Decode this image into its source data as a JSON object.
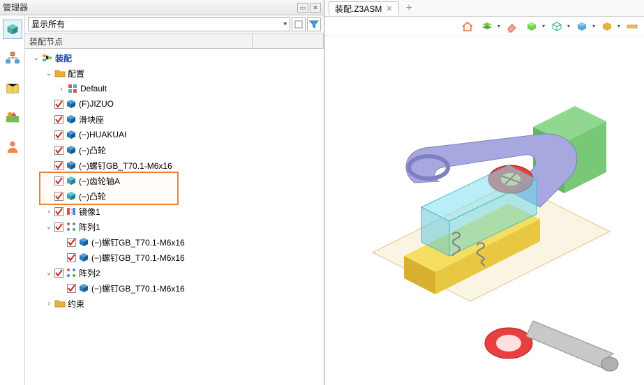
{
  "manager": {
    "title": "管理器",
    "filter_label": "显示所有",
    "col1_header": "装配节点",
    "col2_header": ""
  },
  "left_toolbar": {
    "items": [
      {
        "name": "assembly-cube-icon",
        "active": true
      },
      {
        "name": "org-chart-icon",
        "active": false
      },
      {
        "name": "package-icon",
        "active": false
      },
      {
        "name": "appearance-icon",
        "active": false
      },
      {
        "name": "user-icon",
        "active": false
      }
    ]
  },
  "tree": {
    "nodes": [
      {
        "depth": 0,
        "exp": "open",
        "chk": null,
        "icon": "asm-root",
        "label": "装配",
        "bold": true
      },
      {
        "depth": 1,
        "exp": "open",
        "chk": null,
        "icon": "folder",
        "label": "配置"
      },
      {
        "depth": 2,
        "exp": "closed",
        "chk": null,
        "icon": "config",
        "label": "Default"
      },
      {
        "depth": 1,
        "exp": "blank",
        "chk": true,
        "icon": "cube-blue",
        "label": "(F)JIZUO"
      },
      {
        "depth": 1,
        "exp": "blank",
        "chk": true,
        "icon": "cube-blue",
        "label": "滑块座"
      },
      {
        "depth": 1,
        "exp": "blank",
        "chk": true,
        "icon": "cube-blue",
        "label": "(−)HUAKUAI"
      },
      {
        "depth": 1,
        "exp": "blank",
        "chk": true,
        "icon": "cube-blue",
        "label": "(−)凸轮"
      },
      {
        "depth": 1,
        "exp": "blank",
        "chk": true,
        "icon": "cube-blue",
        "label": "(−)螺钉GB_T70.1-M6x16"
      },
      {
        "depth": 1,
        "exp": "blank",
        "chk": true,
        "icon": "cube-cyan",
        "label": "(−)齿轮轴A"
      },
      {
        "depth": 1,
        "exp": "blank",
        "chk": true,
        "icon": "cube-cyan",
        "label": "(−)凸轮"
      },
      {
        "depth": 1,
        "exp": "closed",
        "chk": true,
        "icon": "mirror",
        "label": "镜像1"
      },
      {
        "depth": 1,
        "exp": "open",
        "chk": true,
        "icon": "pattern",
        "label": "阵列1"
      },
      {
        "depth": 2,
        "exp": "blank",
        "chk": true,
        "icon": "cube-blue",
        "label": "(−)螺钉GB_T70.1-M6x16"
      },
      {
        "depth": 2,
        "exp": "blank",
        "chk": true,
        "icon": "cube-blue",
        "label": "(−)螺钉GB_T70.1-M6x16"
      },
      {
        "depth": 1,
        "exp": "open",
        "chk": true,
        "icon": "pattern",
        "label": "阵列2"
      },
      {
        "depth": 2,
        "exp": "blank",
        "chk": true,
        "icon": "cube-blue",
        "label": "(−)螺钉GB_T70.1-M6x16"
      },
      {
        "depth": 1,
        "exp": "closed",
        "chk": null,
        "icon": "folder",
        "label": "约束"
      }
    ],
    "highlight": {
      "top_row": 8,
      "rows": 2
    }
  },
  "viewport": {
    "tab_label": "装配.Z3ASM",
    "toolbar_items": [
      "home",
      "layers",
      "eraser",
      "cube-green",
      "cube-wire",
      "cube-iso",
      "cube-pick",
      "ruler"
    ]
  },
  "colors": {
    "check_red": "#d02020",
    "cube_blue": "#2a7ab8",
    "cube_cyan": "#2aa8b8",
    "folder": "#e8b040",
    "highlight_border": "#f08030",
    "root_blue": "#2050b0",
    "part_green": "#78c878",
    "part_yellow": "#f0d040",
    "part_purple": "#9090d8",
    "part_red": "#e03030",
    "part_gray": "#b0b0b0",
    "part_cyan": "#70d8e8",
    "ground_tan": "#f0e0b0"
  }
}
